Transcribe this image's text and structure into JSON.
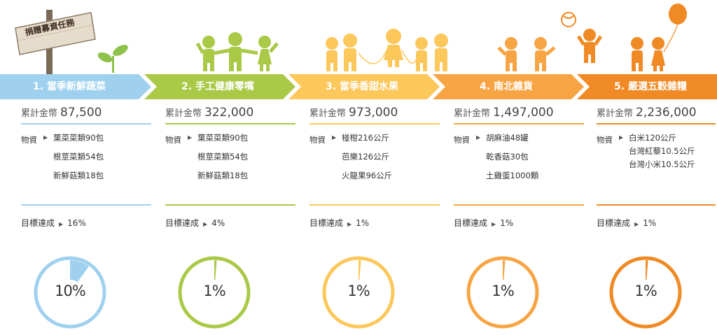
{
  "sign": {
    "text": "捐贈募資任務"
  },
  "labels": {
    "amount": "累計金幣",
    "items": "物資",
    "goal": "目標達成"
  },
  "columns": [
    {
      "title": "1. 當季新鮮蔬菜",
      "amount": "87,500",
      "items": [
        "葉菜菜類90包",
        "根莖菜類54包",
        "新鮮菇類18包"
      ],
      "goal": "16%",
      "ring_label": "10%",
      "ring_fraction": 0.1,
      "color": "#9fd1ef",
      "text_color": "#ffffff"
    },
    {
      "title": "2. 手工健康零嘴",
      "amount": "322,000",
      "items": [
        "葉菜菜類90包",
        "根莖菜類54包",
        "新鮮菇類18包"
      ],
      "goal": "4%",
      "ring_label": "1%",
      "ring_fraction": 0.01,
      "color": "#a9c947",
      "text_color": "#ffffff"
    },
    {
      "title": "3. 當季香甜水果",
      "amount": "973,000",
      "items": [
        "椪柑216公斤",
        "芭樂126公斤",
        "火龍果96公斤"
      ],
      "goal": "1%",
      "ring_label": "1%",
      "ring_fraction": 0.01,
      "color": "#fcc75b",
      "text_color": "#ffffff"
    },
    {
      "title": "4. 南北雜貨",
      "amount": "1,497,000",
      "items": [
        "胡麻油48罐",
        "乾香菇30包",
        "土雞蛋1000顆"
      ],
      "goal": "1%",
      "ring_label": "1%",
      "ring_fraction": 0.01,
      "color": "#f7a544",
      "text_color": "#ffffff"
    },
    {
      "title": "5. 嚴選五穀雜糧",
      "amount": "2,236,000",
      "items": [
        "白米120公斤",
        "台灣紅藜10.5公斤",
        "台灣小米10.5公斤"
      ],
      "goal": "1%",
      "ring_label": "1%",
      "ring_fraction": 0.01,
      "color": "#ef8a25",
      "text_color": "#ffffff"
    }
  ]
}
